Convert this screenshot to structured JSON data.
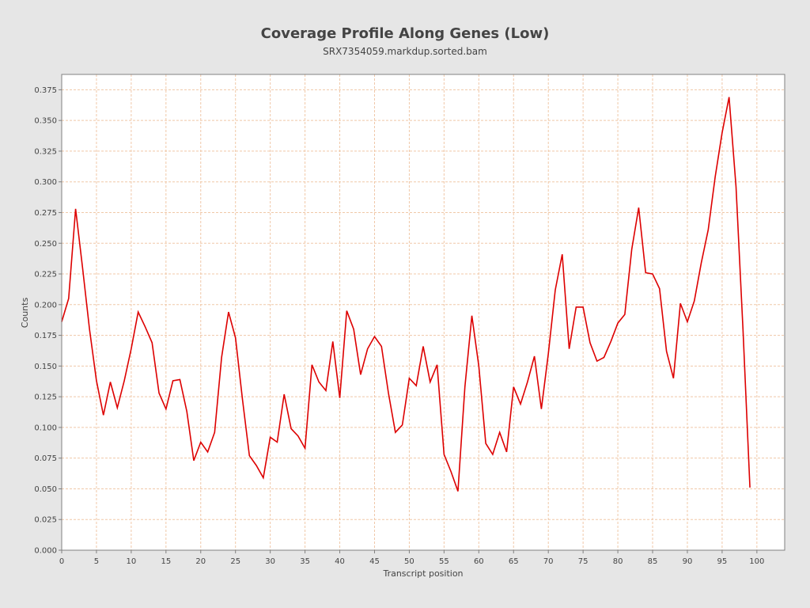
{
  "chart_data": {
    "type": "line",
    "title": "Coverage Profile Along Genes (Low)",
    "subtitle": "SRX7354059.markdup.sorted.bam",
    "xlabel": "Transcript position",
    "ylabel": "Counts",
    "xlim": [
      0,
      104
    ],
    "ylim": [
      0,
      0.3875
    ],
    "xticks": [
      "0",
      "5",
      "10",
      "15",
      "20",
      "25",
      "30",
      "35",
      "40",
      "45",
      "50",
      "55",
      "60",
      "65",
      "70",
      "75",
      "80",
      "85",
      "90",
      "95",
      "100"
    ],
    "yticks": [
      "0.000",
      "0.025",
      "0.050",
      "0.075",
      "0.100",
      "0.125",
      "0.150",
      "0.175",
      "0.200",
      "0.225",
      "0.250",
      "0.275",
      "0.300",
      "0.325",
      "0.350",
      "0.375"
    ],
    "grid": true,
    "legend": "none",
    "colors": {
      "line": "#dd0000",
      "grid": "#f0c8a8",
      "plot_background": "#ffffff",
      "page_background": "#e6e6e6",
      "axis": "#808080"
    },
    "series": [
      {
        "x": [
          0,
          1,
          2,
          3,
          4,
          5,
          6,
          7,
          8,
          9,
          10,
          11,
          12,
          13,
          14,
          15,
          16,
          17,
          18,
          19,
          20,
          21,
          22,
          23,
          24,
          25,
          26,
          27,
          28,
          29,
          30,
          31,
          32,
          33,
          34,
          35,
          36,
          37,
          38,
          39,
          40,
          41,
          42,
          43,
          44,
          45,
          46,
          47,
          48,
          49,
          50,
          51,
          52,
          53,
          54,
          55,
          56,
          57,
          58,
          59,
          60,
          61,
          62,
          63,
          64,
          65,
          66,
          67,
          68,
          69,
          70,
          71,
          72,
          73,
          74,
          75,
          76,
          77,
          78,
          79,
          80,
          81,
          82,
          83,
          84,
          85,
          86,
          87,
          88,
          89,
          90,
          91,
          92,
          93,
          94,
          95,
          96,
          97,
          98,
          99
        ],
        "values": [
          0.186,
          0.205,
          0.278,
          0.23,
          0.18,
          0.138,
          0.11,
          0.137,
          0.116,
          0.138,
          0.164,
          0.194,
          0.182,
          0.169,
          0.128,
          0.115,
          0.138,
          0.139,
          0.113,
          0.073,
          0.088,
          0.08,
          0.096,
          0.157,
          0.194,
          0.173,
          0.123,
          0.077,
          0.069,
          0.059,
          0.092,
          0.088,
          0.127,
          0.099,
          0.093,
          0.083,
          0.151,
          0.137,
          0.13,
          0.17,
          0.124,
          0.195,
          0.18,
          0.143,
          0.164,
          0.174,
          0.166,
          0.128,
          0.096,
          0.102,
          0.14,
          0.134,
          0.166,
          0.137,
          0.151,
          0.078,
          0.064,
          0.048,
          0.133,
          0.191,
          0.15,
          0.087,
          0.078,
          0.096,
          0.08,
          0.133,
          0.119,
          0.137,
          0.158,
          0.115,
          0.16,
          0.212,
          0.241,
          0.164,
          0.198,
          0.198,
          0.169,
          0.154,
          0.157,
          0.17,
          0.185,
          0.192,
          0.245,
          0.279,
          0.226,
          0.225,
          0.213,
          0.162,
          0.14,
          0.201,
          0.186,
          0.203,
          0.234,
          0.261,
          0.304,
          0.34,
          0.369,
          0.296,
          0.18,
          0.051
        ]
      }
    ]
  }
}
